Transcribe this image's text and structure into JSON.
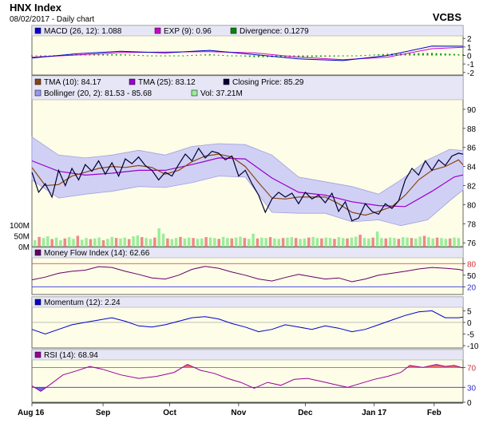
{
  "header": {
    "title": "HNX Index",
    "subtitle": "08/02/2017 - Daily chart",
    "source": "VCBS"
  },
  "panels": {
    "macd": {
      "legend": [
        {
          "label": "MACD (26, 12): 1.088",
          "color": "#0000cc"
        },
        {
          "label": "EXP (9): 0.96",
          "color": "#cc00cc"
        },
        {
          "label": "Divergence: 0.1279",
          "color": "#008800"
        }
      ],
      "ticks": [
        "2",
        "1",
        "0",
        "-1",
        "-2"
      ]
    },
    "price": {
      "legend_row1": [
        {
          "label": "TMA (10): 84.17",
          "color": "#8b4513"
        },
        {
          "label": "TMA (25): 83.12",
          "color": "#9900cc"
        },
        {
          "label": "Closing Price: 85.29",
          "color": "#000033"
        }
      ],
      "legend_row2": [
        {
          "label": "Bollinger (20, 2): 81.53 - 85.68",
          "color": "#9999ee"
        },
        {
          "label": "Vol: 37.21M",
          "color": "#99ee99"
        }
      ],
      "ticks": [
        "90",
        "88",
        "86",
        "84",
        "82",
        "80",
        "78",
        "76"
      ],
      "volume_ticks": [
        "100M",
        "50M",
        "0M"
      ]
    },
    "mfi": {
      "legend": [
        {
          "label": "Money Flow Index (14): 62.66",
          "color": "#660066"
        }
      ],
      "ticks": [
        "80",
        "50",
        "20"
      ]
    },
    "momentum": {
      "legend": [
        {
          "label": "Momentum (12): 2.24",
          "color": "#0000cc"
        }
      ],
      "ticks": [
        "5",
        "0",
        "-5",
        "-10"
      ]
    },
    "rsi": {
      "legend": [
        {
          "label": "RSI (14): 68.94",
          "color": "#990099"
        }
      ],
      "ticks": [
        "70",
        "30",
        "0"
      ]
    }
  },
  "x_axis": {
    "labels": [
      "Aug 16",
      "Sep",
      "Oct",
      "Nov",
      "Dec",
      "Jan 17",
      "Feb"
    ]
  },
  "colors": {
    "panel_bg": "#fdfde8",
    "band_fill": "#d0d0f4",
    "vol_up": "#99ee99",
    "vol_down": "#ee8888",
    "rsi_over": "#ee6666",
    "rsi_under": "#6666ee"
  },
  "chart_data": {
    "type": "line",
    "x_range": [
      "2016-08-01",
      "2017-02-08"
    ],
    "closing_price": [
      [
        0,
        83.4
      ],
      [
        3,
        81.3
      ],
      [
        6,
        82.2
      ],
      [
        9,
        80.8
      ],
      [
        12,
        83.6
      ],
      [
        15,
        82.0
      ],
      [
        18,
        83.8
      ],
      [
        21,
        82.6
      ],
      [
        24,
        84.2
      ],
      [
        27,
        83.5
      ],
      [
        30,
        84.6
      ],
      [
        33,
        83.2
      ],
      [
        36,
        84.4
      ],
      [
        39,
        83.0
      ],
      [
        42,
        84.8
      ],
      [
        45,
        84.3
      ],
      [
        48,
        85.0
      ],
      [
        51,
        84.1
      ],
      [
        54,
        83.6
      ],
      [
        57,
        82.6
      ],
      [
        60,
        83.4
      ],
      [
        63,
        83.0
      ],
      [
        66,
        84.2
      ],
      [
        69,
        85.3
      ],
      [
        72,
        84.6
      ],
      [
        75,
        85.9
      ],
      [
        78,
        84.9
      ],
      [
        81,
        85.6
      ],
      [
        84,
        85.4
      ],
      [
        87,
        84.7
      ],
      [
        90,
        85.1
      ],
      [
        93,
        83.0
      ],
      [
        96,
        83.6
      ],
      [
        99,
        82.2
      ],
      [
        102,
        81.0
      ],
      [
        105,
        79.2
      ],
      [
        108,
        80.6
      ],
      [
        111,
        81.3
      ],
      [
        114,
        80.8
      ],
      [
        117,
        81.2
      ],
      [
        120,
        80.1
      ],
      [
        123,
        81.3
      ],
      [
        126,
        80.6
      ],
      [
        129,
        81.0
      ],
      [
        132,
        80.2
      ],
      [
        135,
        81.2
      ],
      [
        138,
        79.3
      ],
      [
        141,
        80.3
      ],
      [
        144,
        78.3
      ],
      [
        147,
        78.6
      ],
      [
        150,
        80.1
      ],
      [
        153,
        79.3
      ],
      [
        156,
        79.0
      ],
      [
        159,
        80.1
      ],
      [
        162,
        79.6
      ],
      [
        165,
        80.4
      ],
      [
        168,
        82.6
      ],
      [
        171,
        83.8
      ],
      [
        174,
        83.1
      ],
      [
        177,
        84.6
      ],
      [
        180,
        83.6
      ],
      [
        183,
        84.7
      ],
      [
        186,
        84.1
      ],
      [
        189,
        85.1
      ],
      [
        192,
        85.4
      ],
      [
        194,
        85.29
      ]
    ],
    "tma_10": [
      [
        0,
        83.9
      ],
      [
        6,
        82.0
      ],
      [
        12,
        82.1
      ],
      [
        18,
        83.0
      ],
      [
        24,
        83.4
      ],
      [
        30,
        83.8
      ],
      [
        36,
        84.0
      ],
      [
        42,
        83.9
      ],
      [
        48,
        84.1
      ],
      [
        54,
        83.9
      ],
      [
        60,
        83.2
      ],
      [
        66,
        83.6
      ],
      [
        72,
        84.5
      ],
      [
        78,
        85.1
      ],
      [
        84,
        85.3
      ],
      [
        90,
        85.0
      ],
      [
        96,
        84.0
      ],
      [
        102,
        82.3
      ],
      [
        108,
        80.7
      ],
      [
        114,
        80.6
      ],
      [
        120,
        80.8
      ],
      [
        126,
        80.8
      ],
      [
        132,
        80.8
      ],
      [
        138,
        80.1
      ],
      [
        144,
        79.2
      ],
      [
        150,
        78.9
      ],
      [
        156,
        79.3
      ],
      [
        162,
        79.8
      ],
      [
        168,
        81.0
      ],
      [
        174,
        82.6
      ],
      [
        180,
        83.6
      ],
      [
        186,
        84.0
      ],
      [
        192,
        84.7
      ],
      [
        194,
        84.17
      ]
    ],
    "tma_25": [
      [
        0,
        84.6
      ],
      [
        12,
        83.5
      ],
      [
        24,
        83.1
      ],
      [
        36,
        83.3
      ],
      [
        48,
        83.6
      ],
      [
        60,
        83.6
      ],
      [
        72,
        84.2
      ],
      [
        84,
        84.9
      ],
      [
        96,
        84.8
      ],
      [
        108,
        82.8
      ],
      [
        120,
        81.3
      ],
      [
        132,
        81.0
      ],
      [
        144,
        80.3
      ],
      [
        156,
        79.9
      ],
      [
        168,
        79.8
      ],
      [
        180,
        81.4
      ],
      [
        190,
        82.9
      ],
      [
        194,
        83.12
      ]
    ],
    "bollinger_upper": [
      [
        0,
        87.1
      ],
      [
        12,
        85.2
      ],
      [
        24,
        84.9
      ],
      [
        36,
        85.2
      ],
      [
        48,
        85.7
      ],
      [
        60,
        85.2
      ],
      [
        72,
        86.1
      ],
      [
        84,
        86.4
      ],
      [
        96,
        86.3
      ],
      [
        108,
        85.2
      ],
      [
        120,
        82.9
      ],
      [
        132,
        82.4
      ],
      [
        144,
        81.9
      ],
      [
        156,
        81.1
      ],
      [
        166,
        82.6
      ],
      [
        178,
        84.7
      ],
      [
        188,
        85.8
      ],
      [
        194,
        85.68
      ]
    ],
    "bollinger_lower": [
      [
        0,
        82.6
      ],
      [
        12,
        80.7
      ],
      [
        24,
        81.1
      ],
      [
        36,
        81.4
      ],
      [
        48,
        81.9
      ],
      [
        60,
        81.8
      ],
      [
        72,
        82.3
      ],
      [
        84,
        83.0
      ],
      [
        96,
        82.9
      ],
      [
        108,
        79.2
      ],
      [
        120,
        79.1
      ],
      [
        132,
        79.1
      ],
      [
        144,
        78.2
      ],
      [
        156,
        78.4
      ],
      [
        166,
        77.8
      ],
      [
        178,
        78.4
      ],
      [
        188,
        80.4
      ],
      [
        194,
        81.53
      ]
    ],
    "volume_millions": [
      30,
      45,
      40,
      48,
      35,
      42,
      30,
      38,
      44,
      36,
      50,
      32,
      40,
      35,
      38,
      42,
      30,
      36,
      45,
      40,
      38,
      42,
      35,
      48,
      52,
      44,
      40,
      36,
      42,
      85,
      60,
      38,
      35,
      40,
      45,
      38,
      42,
      40,
      36,
      38,
      44,
      42,
      40,
      36,
      45,
      40,
      38,
      42,
      46,
      40,
      36,
      60,
      38,
      42,
      40,
      44,
      38,
      36,
      40,
      42,
      44,
      40,
      36,
      38,
      42,
      45,
      40,
      38,
      42,
      40,
      36,
      44,
      40,
      38,
      42,
      46,
      55,
      40,
      38,
      42,
      70,
      40,
      38,
      42,
      40,
      36,
      44,
      42,
      40,
      38,
      46,
      50,
      44,
      38,
      42,
      40,
      36,
      38,
      42,
      40
    ],
    "money_flow_index": [
      [
        0,
        38
      ],
      [
        6,
        45
      ],
      [
        12,
        55
      ],
      [
        18,
        60
      ],
      [
        24,
        63
      ],
      [
        30,
        72
      ],
      [
        36,
        70
      ],
      [
        42,
        60
      ],
      [
        48,
        52
      ],
      [
        54,
        43
      ],
      [
        60,
        40
      ],
      [
        66,
        50
      ],
      [
        72,
        65
      ],
      [
        78,
        73
      ],
      [
        84,
        68
      ],
      [
        90,
        58
      ],
      [
        96,
        50
      ],
      [
        102,
        40
      ],
      [
        108,
        35
      ],
      [
        114,
        44
      ],
      [
        120,
        52
      ],
      [
        126,
        46
      ],
      [
        132,
        40
      ],
      [
        138,
        43
      ],
      [
        144,
        33
      ],
      [
        150,
        40
      ],
      [
        156,
        50
      ],
      [
        162,
        55
      ],
      [
        168,
        60
      ],
      [
        174,
        66
      ],
      [
        180,
        70
      ],
      [
        186,
        68
      ],
      [
        192,
        65
      ],
      [
        194,
        62.66
      ]
    ],
    "momentum": [
      [
        0,
        -3
      ],
      [
        6,
        -5
      ],
      [
        12,
        -3
      ],
      [
        18,
        -1
      ],
      [
        24,
        0
      ],
      [
        30,
        1
      ],
      [
        36,
        2
      ],
      [
        42,
        0.5
      ],
      [
        48,
        -1.5
      ],
      [
        54,
        -2
      ],
      [
        60,
        -1
      ],
      [
        66,
        0.5
      ],
      [
        72,
        2
      ],
      [
        78,
        2.5
      ],
      [
        84,
        1.5
      ],
      [
        90,
        -0.5
      ],
      [
        96,
        -2
      ],
      [
        102,
        -4
      ],
      [
        108,
        -3
      ],
      [
        114,
        -1
      ],
      [
        120,
        -2
      ],
      [
        126,
        -3
      ],
      [
        132,
        -1.5
      ],
      [
        138,
        -2.5
      ],
      [
        144,
        -4
      ],
      [
        150,
        -3
      ],
      [
        156,
        -1
      ],
      [
        162,
        1
      ],
      [
        168,
        3
      ],
      [
        174,
        4.5
      ],
      [
        180,
        5
      ],
      [
        186,
        2
      ],
      [
        192,
        2
      ],
      [
        194,
        2.24
      ]
    ],
    "rsi": [
      [
        0,
        33
      ],
      [
        4,
        22
      ],
      [
        8,
        35
      ],
      [
        14,
        55
      ],
      [
        20,
        63
      ],
      [
        26,
        72
      ],
      [
        32,
        66
      ],
      [
        40,
        55
      ],
      [
        48,
        48
      ],
      [
        56,
        52
      ],
      [
        64,
        60
      ],
      [
        70,
        76
      ],
      [
        76,
        64
      ],
      [
        82,
        58
      ],
      [
        88,
        48
      ],
      [
        94,
        40
      ],
      [
        100,
        28
      ],
      [
        106,
        40
      ],
      [
        112,
        34
      ],
      [
        118,
        46
      ],
      [
        124,
        48
      ],
      [
        130,
        42
      ],
      [
        136,
        36
      ],
      [
        142,
        30
      ],
      [
        148,
        38
      ],
      [
        154,
        46
      ],
      [
        160,
        52
      ],
      [
        166,
        60
      ],
      [
        170,
        74
      ],
      [
        176,
        70
      ],
      [
        182,
        76
      ],
      [
        186,
        72
      ],
      [
        190,
        74
      ],
      [
        194,
        68.94
      ]
    ]
  }
}
